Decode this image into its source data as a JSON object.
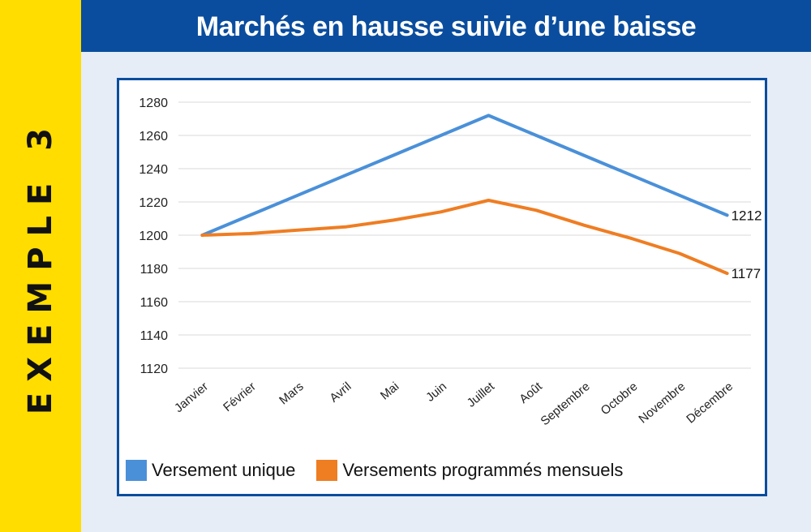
{
  "side_label": "EXEMPLE 3",
  "colors": {
    "side_band": "#ffdd00",
    "title_band": "#0a4d9e",
    "series_1": "#4a90d9",
    "series_2": "#ef7d22"
  },
  "chart_data": {
    "type": "line",
    "title": "Marchés en hausse suivie d’une baisse",
    "categories": [
      "Janvier",
      "Février",
      "Mars",
      "Avril",
      "Mai",
      "Juin",
      "Juillet",
      "Août",
      "Septembre",
      "Octobre",
      "Novembre",
      "Décembre"
    ],
    "series": [
      {
        "name": "Versement unique",
        "values": [
          1200,
          1212,
          1224,
          1236,
          1248,
          1260,
          1272,
          1260,
          1248,
          1236,
          1224,
          1212
        ]
      },
      {
        "name": "Versements programmés mensuels",
        "values": [
          1200,
          1201,
          1203,
          1205,
          1209,
          1214,
          1221,
          1215,
          1206,
          1198,
          1189,
          1177
        ]
      }
    ],
    "end_labels": [
      "1212",
      "1177"
    ],
    "ylim": [
      1120,
      1280
    ],
    "yticks": [
      1120,
      1140,
      1160,
      1180,
      1200,
      1220,
      1240,
      1260,
      1280
    ],
    "grid": true,
    "legend_position": "bottom"
  }
}
